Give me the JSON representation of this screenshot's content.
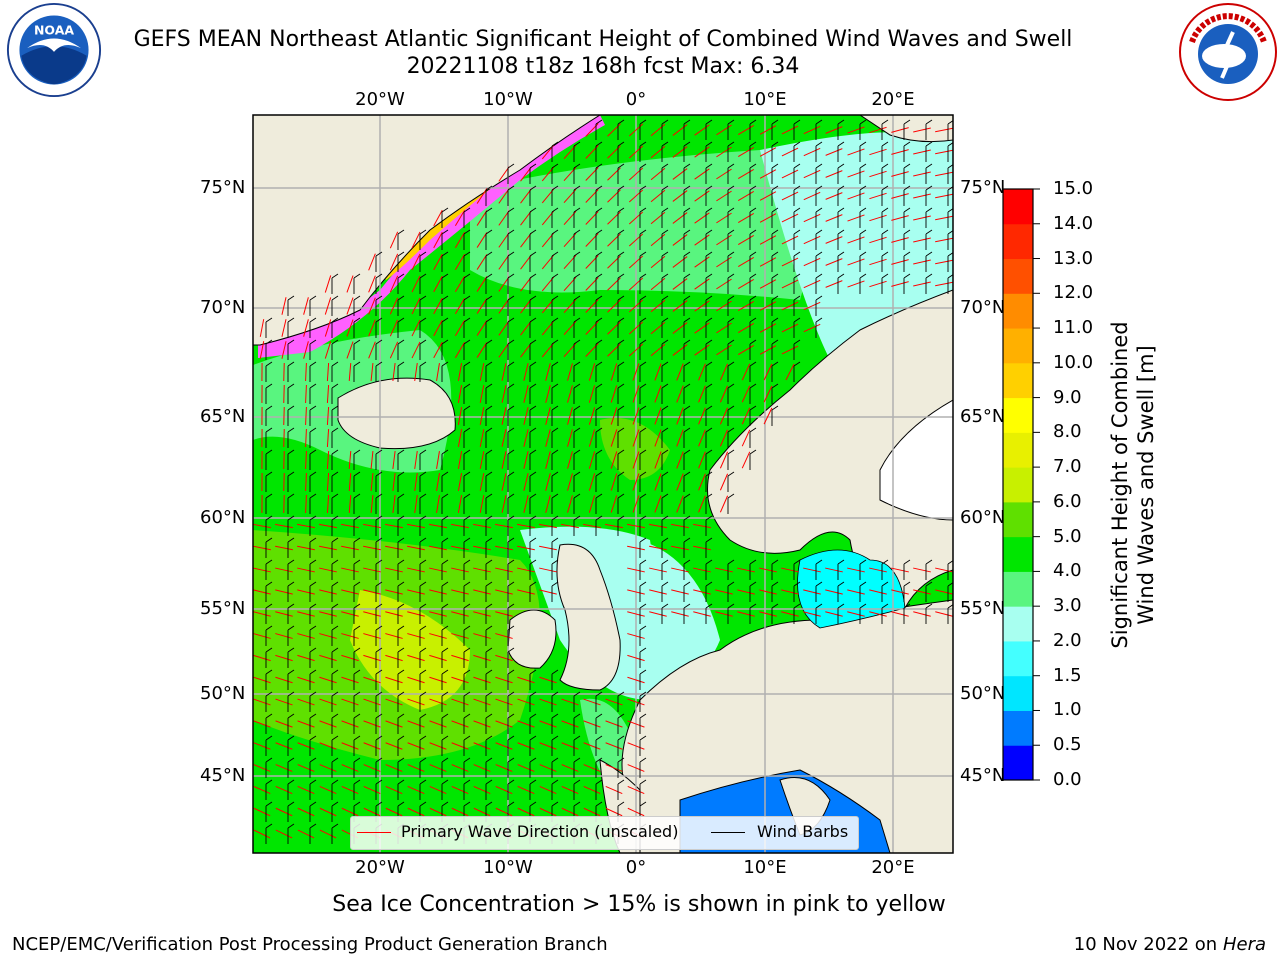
{
  "header": {
    "title": "GEFS MEAN Northeast Atlantic Significant Height of Combined Wind Waves and Swell",
    "subtitle": "20221108 t18z 168h fcst   Max: 6.34"
  },
  "logos": {
    "left": "noaa-logo",
    "right": "national-weather-service-logo"
  },
  "map": {
    "lat_labels": [
      "75°N",
      "70°N",
      "65°N",
      "60°N",
      "55°N",
      "50°N",
      "45°N"
    ],
    "lon_labels": [
      "20°W",
      "10°W",
      "0°",
      "10°E",
      "20°E"
    ],
    "land_color": "#efecdc",
    "ocean_colors": {
      "2.0-3.0": "#a8fff0",
      "3.0-4.0": "#59f57f",
      "4.0-5.0": "#00e600",
      "5.0-6.0": "#5fe000",
      "6.0-7.0": "#c8f000",
      "1.0-1.5": "#00ffff",
      "0.5-1.0": "#007bff"
    }
  },
  "legend": {
    "primary_wave": "Primary Wave Direction (unscaled)",
    "wind_barbs": "Wind Barbs",
    "primary_wave_color": "#ff0000",
    "wind_barb_color": "#000000"
  },
  "colorbar": {
    "ticks": [
      "15.0",
      "14.0",
      "13.0",
      "12.0",
      "11.0",
      "10.0",
      "9.0",
      "8.0",
      "7.0",
      "6.0",
      "5.0",
      "4.0",
      "3.0",
      "2.0",
      "1.5",
      "1.0",
      "0.5",
      "0.0"
    ],
    "title_line1": "Significant Height of Combined",
    "title_line2": "Wind Waves and Swell [m]"
  },
  "footer": {
    "note": "Sea Ice Concentration > 15% is shown in pink to yellow",
    "credit": "NCEP/EMC/Verification Post Processing Product Generation Branch",
    "date": "10 Nov 2022 on",
    "host": "Hera"
  }
}
